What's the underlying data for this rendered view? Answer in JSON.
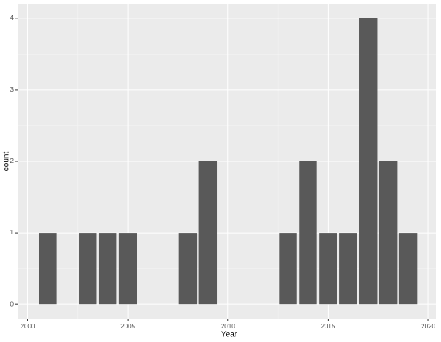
{
  "chart_data": {
    "type": "bar",
    "x_label": "Year",
    "y_label": "count",
    "x": [
      2001,
      2003,
      2004,
      2005,
      2008,
      2009,
      2013,
      2014,
      2015,
      2016,
      2017,
      2018,
      2019
    ],
    "values": [
      1,
      1,
      1,
      1,
      1,
      2,
      1,
      2,
      1,
      1,
      4,
      2,
      1
    ],
    "color": "#595959",
    "xlim": [
      1999.5,
      2020.4
    ],
    "xticks": [
      2000,
      2005,
      2010,
      2015,
      2020
    ],
    "ylim": [
      -0.2,
      4.2
    ],
    "yticks": [
      0,
      1,
      2,
      3,
      4
    ],
    "grid": true
  }
}
